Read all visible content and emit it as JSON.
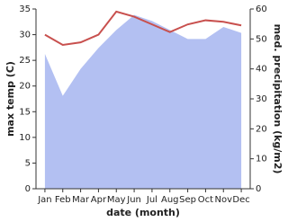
{
  "chart_data": {
    "type": "line",
    "x_label": "date (month)",
    "y_label": "max temp (C)",
    "y2_label": "med. precipitation (kg/m2)",
    "categories": [
      "Jan",
      "Feb",
      "Mar",
      "Apr",
      "May",
      "Jun",
      "Jul",
      "Aug",
      "Sep",
      "Oct",
      "Nov",
      "Dec"
    ],
    "series": [
      {
        "type": "area",
        "axis": "y2",
        "color": "#b3c0f2",
        "values": [
          45,
          31,
          40,
          47,
          53,
          58,
          56,
          53,
          50,
          50,
          54,
          52
        ]
      },
      {
        "type": "line",
        "color": "#c8504e",
        "values": [
          30,
          28,
          28.5,
          30,
          34.5,
          33.5,
          32,
          30.5,
          32,
          32.8,
          32.5,
          31.8
        ]
      }
    ],
    "ylim": [
      0,
      35
    ],
    "yticks": [
      0,
      5,
      10,
      15,
      20,
      25,
      30,
      35
    ],
    "y2lim": [
      0,
      60
    ],
    "y2ticks": [
      0,
      10,
      20,
      30,
      40,
      50,
      60
    ]
  }
}
